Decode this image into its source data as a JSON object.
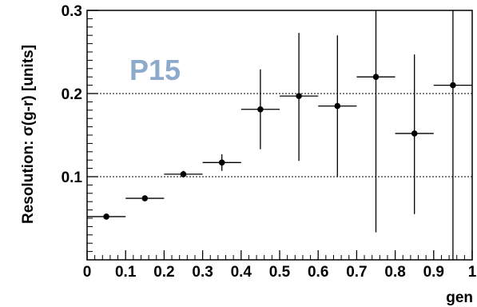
{
  "chart_data": {
    "type": "scatter",
    "xlabel": "gen",
    "ylabel": "Resolution: σ(g-r) [units]",
    "xlim": [
      0,
      1
    ],
    "ylim": [
      0.0,
      0.3
    ],
    "x_ticks": [
      "0",
      "0.1",
      "0.2",
      "0.3",
      "0.4",
      "0.5",
      "0.6",
      "0.7",
      "0.8",
      "0.9",
      "1"
    ],
    "y_ticks": [
      "0.1",
      "0.2",
      "0.3"
    ],
    "reference_lines": [
      0.1,
      0.2
    ],
    "annotation": "P15",
    "annotation_color": "#8eaacb",
    "grid": false,
    "series": [
      {
        "points": [
          {
            "x": 0.05,
            "y": 0.052,
            "xerr": 0.05,
            "yerr_low": 0.002,
            "yerr_high": 0.002
          },
          {
            "x": 0.15,
            "y": 0.074,
            "xerr": 0.05,
            "yerr_low": 0.002,
            "yerr_high": 0.002
          },
          {
            "x": 0.25,
            "y": 0.103,
            "xerr": 0.05,
            "yerr_low": 0.004,
            "yerr_high": 0.004
          },
          {
            "x": 0.35,
            "y": 0.117,
            "xerr": 0.05,
            "yerr_low": 0.01,
            "yerr_high": 0.01
          },
          {
            "x": 0.45,
            "y": 0.181,
            "xerr": 0.05,
            "yerr_low": 0.048,
            "yerr_high": 0.048
          },
          {
            "x": 0.55,
            "y": 0.197,
            "xerr": 0.05,
            "yerr_low": 0.078,
            "yerr_high": 0.076
          },
          {
            "x": 0.65,
            "y": 0.185,
            "xerr": 0.05,
            "yerr_low": 0.085,
            "yerr_high": 0.085
          },
          {
            "x": 0.75,
            "y": 0.22,
            "xerr": 0.05,
            "yerr_low": 0.187,
            "yerr_high": 0.08
          },
          {
            "x": 0.85,
            "y": 0.152,
            "xerr": 0.05,
            "yerr_low": 0.097,
            "yerr_high": 0.095
          },
          {
            "x": 0.95,
            "y": 0.21,
            "xerr": 0.05,
            "yerr_low": 0.21,
            "yerr_high": 0.09
          }
        ]
      }
    ]
  }
}
